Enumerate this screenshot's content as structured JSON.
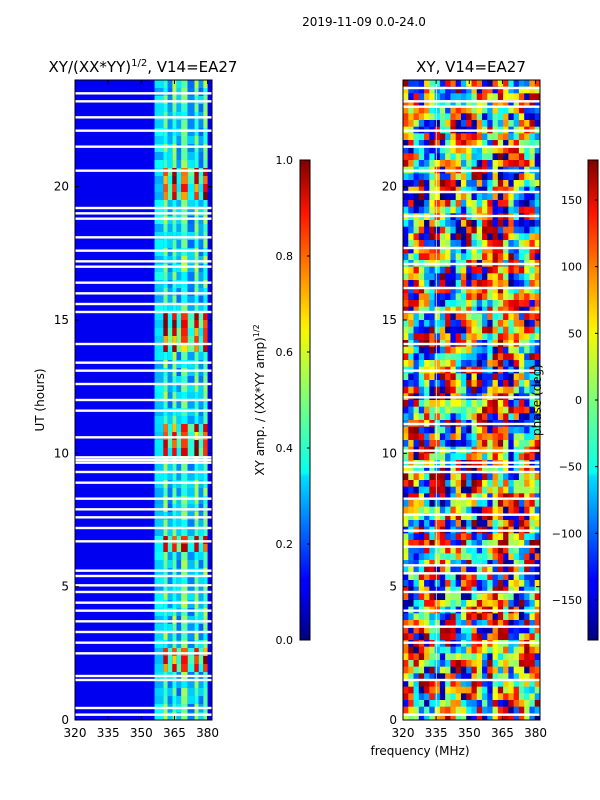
{
  "figure": {
    "suptitle": "2019-11-09 0.0-24.0",
    "shared_xlabel": "frequency (MHz)"
  },
  "chart_data": [
    {
      "type": "heatmap",
      "title": "XY/(XX*YY)^1/2, V14=EA27",
      "title_main": "XY/(XX*YY)",
      "title_sup": "1/2",
      "title_tail": ", V14=EA27",
      "xlabel": "",
      "ylabel": "UT (hours)",
      "xlim": [
        320,
        382
      ],
      "ylim": [
        0,
        24
      ],
      "xticks": [
        "320",
        "335",
        "350",
        "365",
        "380"
      ],
      "xtick_values": [
        320,
        335,
        350,
        365,
        380
      ],
      "yticks": [
        "0",
        "5",
        "10",
        "15",
        "20"
      ],
      "ytick_values": [
        0,
        5,
        10,
        15,
        20
      ],
      "colorbar": {
        "label": "XY amp. / (XX*YY amp)^1/2",
        "label_main": "XY amp. / (XX*YY amp)",
        "label_sup": "1/2",
        "range": [
          0.0,
          1.0
        ],
        "ticks": [
          "0.0",
          "0.2",
          "0.4",
          "0.6",
          "0.8",
          "1.0"
        ],
        "tick_values": [
          0.0,
          0.2,
          0.4,
          0.6,
          0.8,
          1.0
        ]
      },
      "blanked_hours": [
        0.2,
        0.45,
        1.5,
        1.65,
        2.5,
        2.9,
        3.3,
        3.7,
        4.1,
        4.4,
        4.8,
        5.05,
        5.4,
        5.6,
        6.7,
        7.2,
        7.6,
        7.9,
        8.3,
        8.9,
        9.3,
        9.65,
        9.75,
        9.85,
        10.6,
        11.6,
        12.0,
        12.6,
        13.1,
        13.4,
        14.1,
        15.3,
        15.6,
        16.0,
        16.4,
        17.0,
        17.2,
        17.6,
        18.1,
        18.8,
        19.0,
        19.2,
        20.6,
        21.5,
        22.1,
        22.6,
        23.2,
        23.5
      ],
      "high_bands_mhz": [
        [
          360,
          362
        ],
        [
          364,
          366
        ],
        [
          368,
          371
        ],
        [
          374,
          376
        ],
        [
          378,
          380
        ]
      ],
      "peak_hours": [
        2.3,
        6.5,
        10.3,
        10.6,
        14.3,
        14.8,
        19.8,
        20.3
      ]
    },
    {
      "type": "heatmap",
      "title": "XY, V14=EA27",
      "xlabel": "frequency (MHz)",
      "ylabel": "",
      "xlim": [
        320,
        382
      ],
      "ylim": [
        0,
        24
      ],
      "xticks": [
        "320",
        "335",
        "350",
        "365",
        "380"
      ],
      "xtick_values": [
        320,
        335,
        350,
        365,
        380
      ],
      "yticks": [
        "0",
        "5",
        "10",
        "15",
        "20"
      ],
      "ytick_values": [
        0,
        5,
        10,
        15,
        20
      ],
      "colorbar": {
        "label": "phase (deg)",
        "range": [
          -180,
          180
        ],
        "ticks": [
          "−150",
          "−100",
          "−50",
          "0",
          "50",
          "100",
          "150"
        ],
        "tick_values": [
          -150,
          -100,
          -50,
          0,
          50,
          100,
          150
        ]
      },
      "blanked_hours": [
        0.2,
        1.5,
        2.9,
        3.5,
        4.1,
        4.8,
        5.5,
        5.8,
        6.5,
        7.1,
        7.7,
        8.3,
        9.3,
        9.5,
        9.65,
        10.1,
        11.1,
        12.1,
        13.1,
        14.1,
        15.3,
        16.2,
        17.1,
        17.7,
        18.9,
        19.8,
        20.6,
        21.5,
        22.1,
        23.0,
        23.2,
        23.7
      ]
    }
  ]
}
